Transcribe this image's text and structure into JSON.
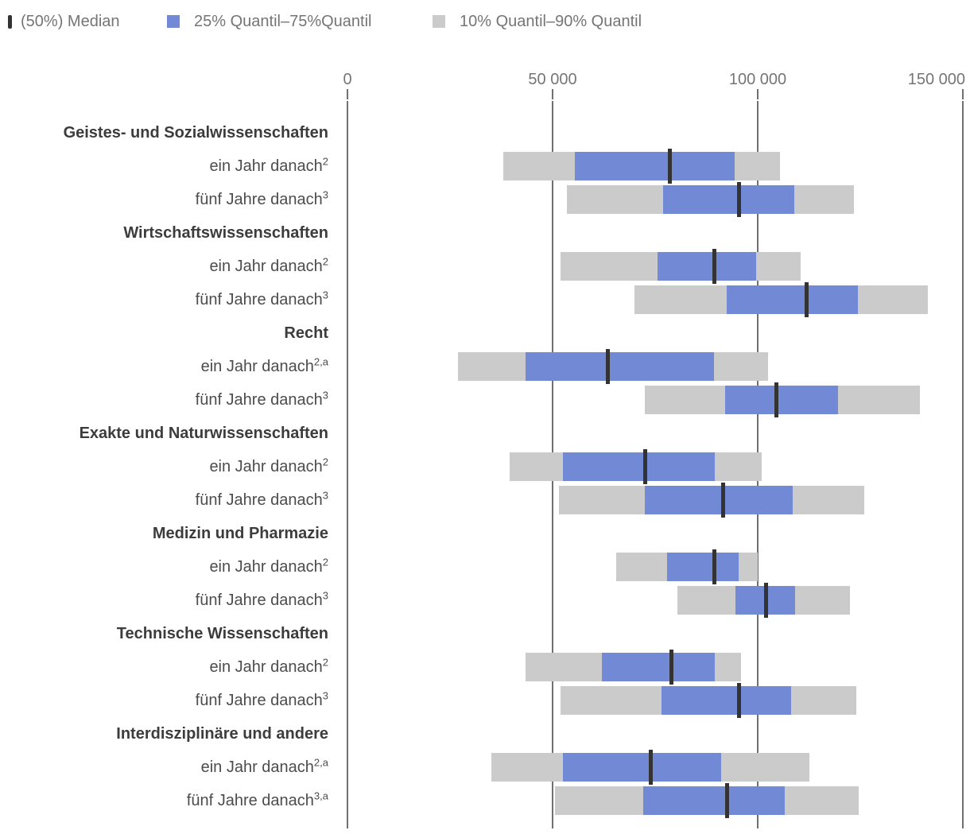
{
  "legend": {
    "median": {
      "label": "(50%) Median"
    },
    "iqr": {
      "label": "25% Quantil–75%Quantil"
    },
    "decile": {
      "label": "10% Quantil–90% Quantil"
    }
  },
  "chart_data": {
    "type": "bar",
    "subtype": "horizontal-quantile-range",
    "title": "",
    "xlabel": "",
    "ylabel": "",
    "grid": "vertical-on",
    "legend_position": "top-left",
    "axis": {
      "min": 0,
      "max": 150000,
      "ticks": [
        0,
        50000,
        100000,
        150000
      ],
      "tick_labels": [
        "0",
        "50 000",
        "100 000",
        "150 000"
      ]
    },
    "colors": {
      "median": "#333333",
      "iqr": "#7289d6",
      "decile": "#cbcbcb",
      "gridline": "#707070",
      "axis_text": "#757575",
      "header_text": "#3c3c3c",
      "label_text": "#4c4c4c"
    },
    "rows": [
      {
        "type": "header",
        "label": "Geistes- und Sozialwissenschaften"
      },
      {
        "type": "bar",
        "label": "ein Jahr danach",
        "sup": "2",
        "q10": 38000,
        "q25": 55500,
        "q50": 78500,
        "q75": 94500,
        "q90": 105500
      },
      {
        "type": "bar",
        "label": "fünf Jahre danach",
        "sup": "3",
        "q10": 53500,
        "q25": 77000,
        "q50": 95500,
        "q75": 109000,
        "q90": 123500
      },
      {
        "type": "header",
        "label": "Wirtschaftswissenschaften"
      },
      {
        "type": "bar",
        "label": "ein Jahr danach",
        "sup": "2",
        "q10": 52000,
        "q25": 75500,
        "q50": 89500,
        "q75": 99500,
        "q90": 110500
      },
      {
        "type": "bar",
        "label": "fünf Jahre danach",
        "sup": "3",
        "q10": 70000,
        "q25": 92500,
        "q50": 112000,
        "q75": 124500,
        "q90": 141500
      },
      {
        "type": "header",
        "label": "Recht"
      },
      {
        "type": "bar",
        "label": "ein Jahr danach",
        "sup": "2,a",
        "q10": 27000,
        "q25": 43500,
        "q50": 63500,
        "q75": 89500,
        "q90": 102500
      },
      {
        "type": "bar",
        "label": "fünf Jahre danach",
        "sup": "3",
        "q10": 72500,
        "q25": 92000,
        "q50": 104500,
        "q75": 119500,
        "q90": 139500
      },
      {
        "type": "header",
        "label": "Exakte und Naturwissenschaften"
      },
      {
        "type": "bar",
        "label": "ein Jahr danach",
        "sup": "2",
        "q10": 39500,
        "q25": 52500,
        "q50": 72500,
        "q75": 89500,
        "q90": 101000
      },
      {
        "type": "bar",
        "label": "fünf Jahre danach",
        "sup": "3",
        "q10": 51500,
        "q25": 72500,
        "q50": 91500,
        "q75": 108500,
        "q90": 126000
      },
      {
        "type": "header",
        "label": "Medizin und Pharmazie"
      },
      {
        "type": "bar",
        "label": "ein Jahr danach",
        "sup": "2",
        "q10": 65500,
        "q25": 78000,
        "q50": 89500,
        "q75": 95500,
        "q90": 100000
      },
      {
        "type": "bar",
        "label": "fünf Jahre danach",
        "sup": "3",
        "q10": 80500,
        "q25": 94500,
        "q50": 102000,
        "q75": 109000,
        "q90": 122500
      },
      {
        "type": "header",
        "label": "Technische Wissenschaften"
      },
      {
        "type": "bar",
        "label": "ein Jahr danach",
        "sup": "2",
        "q10": 43500,
        "q25": 62000,
        "q50": 79000,
        "q75": 89500,
        "q90": 96000
      },
      {
        "type": "bar",
        "label": "fünf Jahre danach",
        "sup": "3",
        "q10": 52000,
        "q25": 76500,
        "q50": 95500,
        "q75": 108000,
        "q90": 124000
      },
      {
        "type": "header",
        "label": "Interdisziplinäre und andere"
      },
      {
        "type": "bar",
        "label": "ein Jahr danach",
        "sup": "2,a",
        "q10": 35000,
        "q25": 52500,
        "q50": 74000,
        "q75": 91000,
        "q90": 112500
      },
      {
        "type": "bar",
        "label": "fünf Jahre danach",
        "sup": "3,a",
        "q10": 50500,
        "q25": 72000,
        "q50": 92500,
        "q75": 106500,
        "q90": 124500
      }
    ]
  }
}
